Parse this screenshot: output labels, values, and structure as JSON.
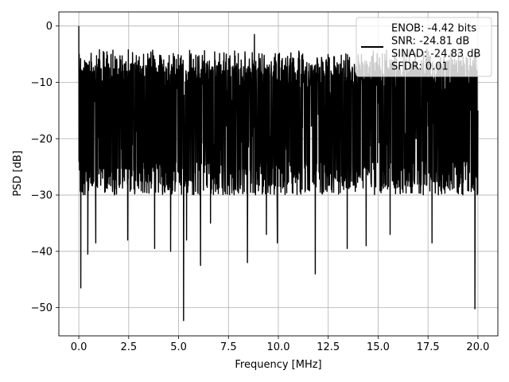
{
  "chart_data": {
    "type": "line",
    "title": "",
    "xlabel": "Frequency [MHz]",
    "ylabel": "PSD [dB]",
    "xlim": [
      -1.0,
      21.0
    ],
    "ylim": [
      -55,
      2.5
    ],
    "x_ticks": [
      0.0,
      2.5,
      5.0,
      7.5,
      10.0,
      12.5,
      15.0,
      17.5,
      20.0
    ],
    "x_tick_labels": [
      "0.0",
      "2.5",
      "5.0",
      "7.5",
      "10.0",
      "12.5",
      "15.0",
      "17.5",
      "20.0"
    ],
    "y_ticks": [
      0,
      -10,
      -20,
      -30,
      -40,
      -50
    ],
    "y_tick_labels": [
      "0",
      "−10",
      "−20",
      "−30",
      "−40",
      "−50"
    ],
    "grid": true,
    "legend_position": "top-right",
    "series": [
      {
        "name": "ENOB: -4.42 bits\nSNR: -24.81 dB\nSINAD: -24.83 dB\nSFDR: 0.01",
        "color": "#000000",
        "x_range": [
          0.0,
          20.0
        ],
        "noise_band": {
          "top_typical": -8,
          "bottom_typical": -27,
          "median": -16
        },
        "notable_points": [
          {
            "x": 0.0,
            "y": 0.0
          },
          {
            "x": 0.02,
            "y": -5.0
          },
          {
            "x": 0.05,
            "y": -22.0
          },
          {
            "x": 0.1,
            "y": -46.5
          },
          {
            "x": 0.15,
            "y": -8.0
          },
          {
            "x": 0.25,
            "y": -28.0
          },
          {
            "x": 0.45,
            "y": -40.5
          },
          {
            "x": 0.85,
            "y": -38.5
          },
          {
            "x": 2.45,
            "y": -38.0
          },
          {
            "x": 3.8,
            "y": -39.5
          },
          {
            "x": 4.6,
            "y": -40.0
          },
          {
            "x": 5.25,
            "y": -52.3
          },
          {
            "x": 5.4,
            "y": -38.0
          },
          {
            "x": 6.1,
            "y": -42.5
          },
          {
            "x": 6.6,
            "y": -35.0
          },
          {
            "x": 8.8,
            "y": -1.5
          },
          {
            "x": 8.45,
            "y": -42.0
          },
          {
            "x": 9.4,
            "y": -37.0
          },
          {
            "x": 9.95,
            "y": -38.5
          },
          {
            "x": 11.85,
            "y": -44.0
          },
          {
            "x": 13.45,
            "y": -39.5
          },
          {
            "x": 14.4,
            "y": -39.0
          },
          {
            "x": 15.6,
            "y": -37.0
          },
          {
            "x": 17.7,
            "y": -38.5
          },
          {
            "x": 19.85,
            "y": -50.2
          },
          {
            "x": 20.0,
            "y": -15.0
          }
        ]
      }
    ]
  }
}
